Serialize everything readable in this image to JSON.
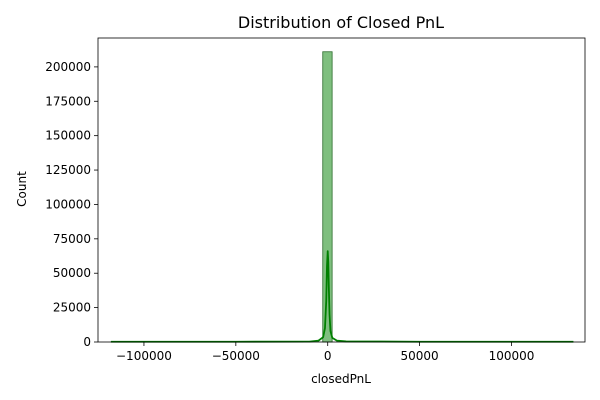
{
  "chart_data": {
    "type": "histogram",
    "title": "Distribution of Closed PnL",
    "xlabel": "closedPnL",
    "ylabel": "Count",
    "xlim": [
      -125000,
      140000
    ],
    "ylim": [
      0,
      221000
    ],
    "xticks": [
      -100000,
      -50000,
      0,
      50000,
      100000
    ],
    "xtick_labels": [
      "−100000",
      "−50000",
      "0",
      "50000",
      "100000"
    ],
    "yticks": [
      0,
      25000,
      50000,
      75000,
      100000,
      125000,
      150000,
      175000,
      200000
    ],
    "ytick_labels": [
      "0",
      "25000",
      "50000",
      "75000",
      "100000",
      "125000",
      "150000",
      "175000",
      "200000"
    ],
    "bins": [
      {
        "x0": -2700,
        "x1": 2400,
        "count": 211000
      }
    ],
    "kde": {
      "x": [
        -117990,
        -50000,
        -10000,
        -5000,
        -2500,
        -1500,
        -800,
        -400,
        0,
        300,
        600,
        1000,
        1500,
        2500,
        5000,
        10000,
        50000,
        133700
      ],
      "y": [
        200,
        200,
        300,
        1000,
        3500,
        10000,
        30000,
        55000,
        66000,
        58000,
        40000,
        20000,
        8000,
        3000,
        1000,
        400,
        200,
        200
      ]
    },
    "grid": false,
    "legend": "none",
    "colors": {
      "bar_fill": "#7fbf7f",
      "bar_edge": "#2a6b2a",
      "kde_line": "#008000"
    }
  }
}
